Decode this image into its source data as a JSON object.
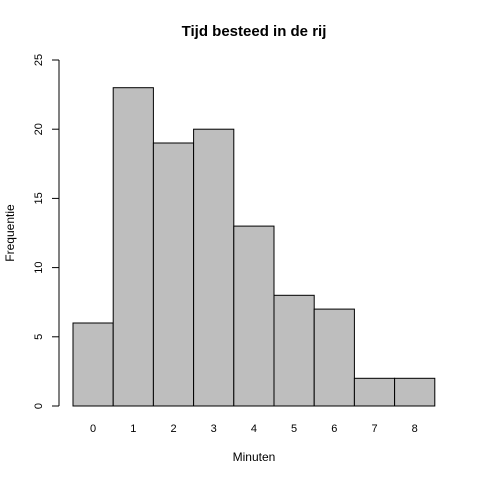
{
  "chart_data": {
    "type": "bar",
    "title": "Tijd besteed in de rij",
    "xlabel": "Minuten",
    "ylabel": "Frequentie",
    "categories": [
      "0",
      "1",
      "2",
      "3",
      "4",
      "5",
      "6",
      "7",
      "8"
    ],
    "values": [
      6,
      23,
      19,
      20,
      13,
      8,
      7,
      2,
      2
    ],
    "ylim": [
      0,
      25
    ],
    "yticks": [
      0,
      5,
      10,
      15,
      20,
      25
    ],
    "grid": false,
    "colors": {
      "bar_fill": "#bebebe",
      "bar_stroke": "#000000"
    }
  }
}
